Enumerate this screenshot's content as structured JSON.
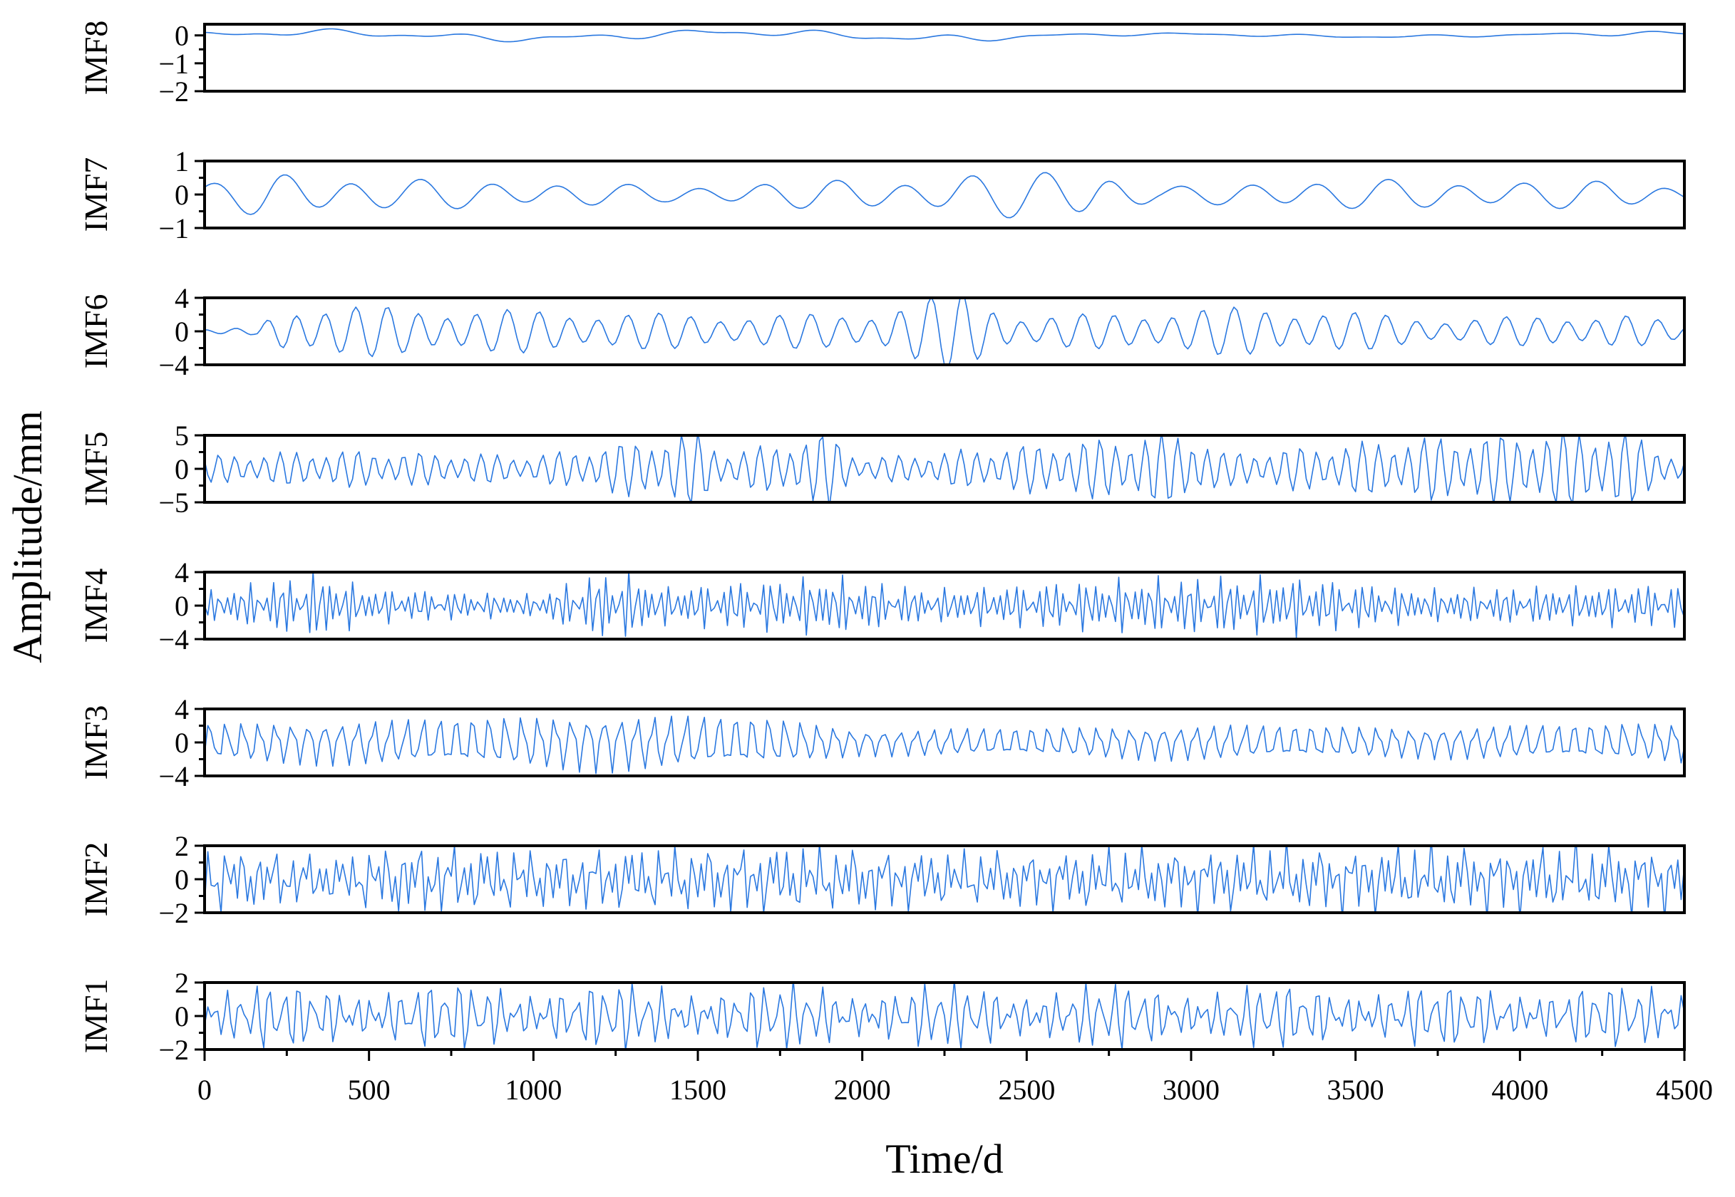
{
  "chart_data": {
    "type": "line",
    "xlabel": "Time/d",
    "ylabel": "Amplitude/mm",
    "xlim": [
      0,
      4500
    ],
    "x_ticks": [
      "0",
      "500",
      "1000",
      "1500",
      "2000",
      "2500",
      "3000",
      "3500",
      "4000",
      "4500"
    ],
    "x_minor_step": 250,
    "line_color": "#2a78e0",
    "sample_step": 10,
    "panels": [
      {
        "name": "IMF8",
        "ylim": [
          -2,
          0.4
        ],
        "y_ticks": [
          0,
          -1,
          -2
        ],
        "y_tick_labels": [
          "0",
          "−1",
          "−2"
        ],
        "minor_ticks": [
          -0.5,
          -1.5
        ],
        "components": [
          {
            "period": 1300,
            "amp": 0.09
          },
          {
            "period": 370,
            "amp": 0.07
          },
          {
            "period": 210,
            "amp": 0.04
          }
        ],
        "envelope": [
          [
            0,
            1.2
          ],
          [
            1500,
            1.2
          ],
          [
            2300,
            1.3
          ],
          [
            2700,
            0.5
          ],
          [
            4200,
            0.5
          ],
          [
            4500,
            1.4
          ]
        ]
      },
      {
        "name": "IMF7",
        "ylim": [
          -1,
          1
        ],
        "y_ticks": [
          1,
          0,
          -1
        ],
        "y_tick_labels": [
          "1",
          "0",
          "−1"
        ],
        "minor_ticks": [
          0.5,
          -0.5
        ],
        "components": [
          {
            "period": 210,
            "amp": 0.4
          },
          {
            "period": 330,
            "amp": 0.12
          }
        ],
        "envelope": [
          [
            0,
            0.6
          ],
          [
            200,
            1.4
          ],
          [
            600,
            0.9
          ],
          [
            1000,
            0.8
          ],
          [
            1400,
            0.5
          ],
          [
            1800,
            0.8
          ],
          [
            2200,
            1.0
          ],
          [
            2700,
            1.7
          ],
          [
            2900,
            0.4
          ],
          [
            3300,
            0.9
          ],
          [
            4300,
            0.8
          ],
          [
            4500,
            0.6
          ]
        ]
      },
      {
        "name": "IMF6",
        "ylim": [
          -4,
          4
        ],
        "y_ticks": [
          4,
          0,
          -4
        ],
        "y_tick_labels": [
          "4",
          "0",
          "−4"
        ],
        "minor_ticks": [
          2,
          -2
        ],
        "components": [
          {
            "period": 92,
            "amp": 1.7
          },
          {
            "period": 117,
            "amp": 0.5
          }
        ],
        "envelope": [
          [
            0,
            0.1
          ],
          [
            150,
            0.2
          ],
          [
            250,
            1.5
          ],
          [
            700,
            1.3
          ],
          [
            1600,
            0.9
          ],
          [
            2000,
            1.0
          ],
          [
            2300,
            2.3
          ],
          [
            2500,
            0.8
          ],
          [
            3200,
            1.4
          ],
          [
            3800,
            0.7
          ],
          [
            4300,
            1.0
          ],
          [
            4500,
            0.4
          ]
        ]
      },
      {
        "name": "IMF5",
        "ylim": [
          -5,
          5
        ],
        "y_ticks": [
          5,
          0,
          -5
        ],
        "y_tick_labels": [
          "5",
          "0",
          "−5"
        ],
        "minor_ticks": [
          2.5,
          -2.5
        ],
        "components": [
          {
            "period": 47,
            "amp": 1.6
          },
          {
            "period": 61,
            "amp": 0.5
          }
        ],
        "envelope": [
          [
            0,
            1.0
          ],
          [
            400,
            1.4
          ],
          [
            1000,
            1.0
          ],
          [
            1500,
            2.8
          ],
          [
            1600,
            1.2
          ],
          [
            1900,
            2.8
          ],
          [
            2000,
            0.8
          ],
          [
            3000,
            2.8
          ],
          [
            3100,
            1.2
          ],
          [
            3800,
            2.5
          ],
          [
            4100,
            2.8
          ],
          [
            4300,
            3.0
          ],
          [
            4500,
            0.8
          ]
        ]
      },
      {
        "name": "IMF4",
        "ylim": [
          -4,
          4
        ],
        "y_ticks": [
          4,
          0,
          -4
        ],
        "y_tick_labels": [
          "4",
          "0",
          "−4"
        ],
        "minor_ticks": [
          2,
          -2
        ],
        "components": [
          {
            "period": 24,
            "amp": 1.3
          },
          {
            "period": 31,
            "amp": 0.5
          }
        ],
        "envelope": [
          [
            0,
            1.0
          ],
          [
            350,
            2.5
          ],
          [
            500,
            1.3
          ],
          [
            1000,
            0.8
          ],
          [
            1250,
            2.8
          ],
          [
            1400,
            1.4
          ],
          [
            1900,
            2.2
          ],
          [
            2200,
            1.2
          ],
          [
            2800,
            2.0
          ],
          [
            3300,
            2.2
          ],
          [
            3700,
            1.2
          ],
          [
            4500,
            1.6
          ]
        ]
      },
      {
        "name": "IMF3",
        "ylim": [
          -4,
          4
        ],
        "y_ticks": [
          4,
          0,
          -4
        ],
        "y_tick_labels": [
          "4",
          "0",
          "−4"
        ],
        "minor_ticks": [
          2,
          -2
        ],
        "components": [
          {
            "period": 12.5,
            "amp": 1.2
          },
          {
            "period": 17,
            "amp": 0.5
          }
        ],
        "envelope": [
          [
            0,
            1.5
          ],
          [
            600,
            1.8
          ],
          [
            1200,
            2.2
          ],
          [
            1700,
            2.0
          ],
          [
            2000,
            1.0
          ],
          [
            2600,
            1.2
          ],
          [
            3100,
            1.4
          ],
          [
            3700,
            1.2
          ],
          [
            4500,
            1.6
          ]
        ]
      },
      {
        "name": "IMF2",
        "ylim": [
          -2,
          2
        ],
        "y_ticks": [
          2,
          0,
          -2
        ],
        "y_tick_labels": [
          "2",
          "0",
          "−2"
        ],
        "minor_ticks": [
          1,
          -1
        ],
        "components": [
          {
            "period": 6.2,
            "amp": 0.9
          },
          {
            "period": 8.3,
            "amp": 0.5
          },
          {
            "period": 11,
            "amp": 0.3
          }
        ],
        "envelope": [
          [
            0,
            1.5
          ],
          [
            400,
            1.0
          ],
          [
            600,
            1.6
          ],
          [
            1000,
            1.3
          ],
          [
            1800,
            1.5
          ],
          [
            2300,
            1.2
          ],
          [
            3000,
            1.4
          ],
          [
            3700,
            1.5
          ],
          [
            4500,
            1.5
          ]
        ]
      },
      {
        "name": "IMF1",
        "ylim": [
          -2,
          2
        ],
        "y_ticks": [
          2,
          0,
          -2
        ],
        "y_tick_labels": [
          "2",
          "0",
          "−2"
        ],
        "minor_ticks": [
          1,
          -1
        ],
        "components": [
          {
            "period": 3.1,
            "amp": 0.8
          },
          {
            "period": 4.3,
            "amp": 0.6
          },
          {
            "period": 5.7,
            "amp": 0.4
          }
        ],
        "envelope": [
          [
            0,
            1.2
          ],
          [
            800,
            1.3
          ],
          [
            2400,
            1.2
          ],
          [
            4500,
            1.2
          ]
        ]
      }
    ]
  }
}
